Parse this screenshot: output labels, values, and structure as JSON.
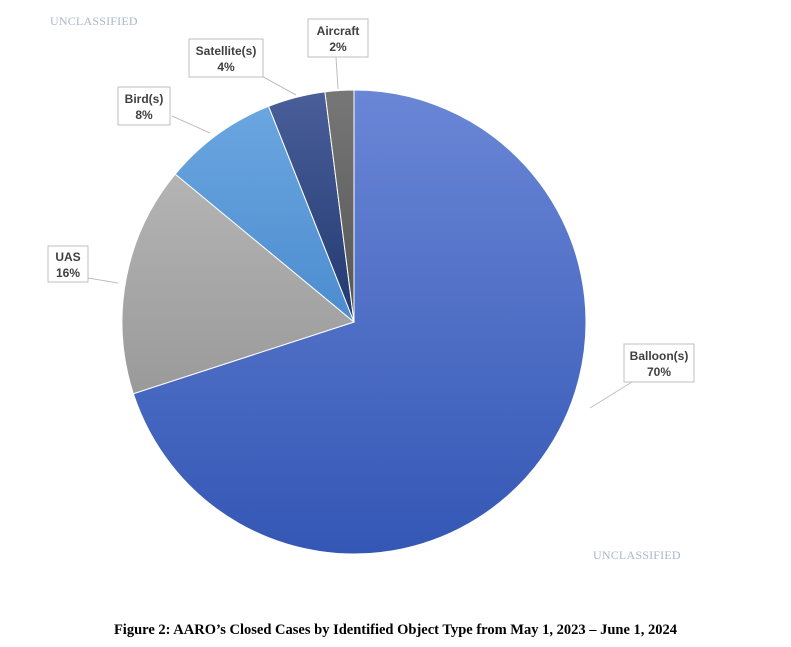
{
  "markings": {
    "top": "UNCLASSIFIED",
    "bottom": "UNCLASSIFIED"
  },
  "caption": "Figure 2:  AARO’s Closed Cases by Identified Object Type from May 1, 2023 – June 1, 2024",
  "chart_data": {
    "type": "pie",
    "title": "",
    "slices": [
      {
        "label": "Balloon(s)",
        "value": 70,
        "display": "70%",
        "color": "#4a6fcc"
      },
      {
        "label": "UAS",
        "value": 16,
        "display": "16%",
        "color": "#a8a8a8"
      },
      {
        "label": "Bird(s)",
        "value": 8,
        "display": "8%",
        "color": "#5b9bd5"
      },
      {
        "label": "Satellite(s)",
        "value": 4,
        "display": "4%",
        "color": "#2e4a8c"
      },
      {
        "label": "Aircraft",
        "value": 2,
        "display": "2%",
        "color": "#636363"
      }
    ],
    "start": "12 o'clock",
    "direction": "clockwise",
    "data_labels": "callouts with leader lines"
  }
}
